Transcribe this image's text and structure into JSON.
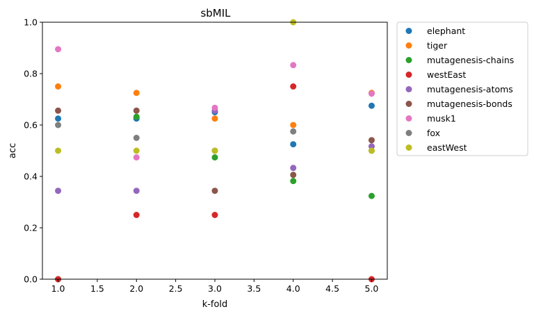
{
  "chart_data": {
    "type": "scatter",
    "title": "sbMIL",
    "xlabel": "k-fold",
    "ylabel": "acc",
    "xlim": [
      0.8,
      5.2
    ],
    "ylim": [
      0.0,
      1.0
    ],
    "xticks": [
      "1.0",
      "1.5",
      "2.0",
      "2.5",
      "3.0",
      "3.5",
      "4.0",
      "4.5",
      "5.0"
    ],
    "yticks": [
      "0.0",
      "0.2",
      "0.4",
      "0.6",
      "0.8",
      "1.0"
    ],
    "grid": false,
    "legend_position": "outside-right-top",
    "x": [
      1.0,
      2.0,
      3.0,
      4.0,
      5.0
    ],
    "series": [
      {
        "name": "elephant",
        "color": "#1f77b4",
        "values": [
          0.625,
          0.625,
          0.65,
          0.525,
          0.675
        ]
      },
      {
        "name": "tiger",
        "color": "#ff7f0e",
        "values": [
          0.75,
          0.725,
          0.625,
          0.6,
          0.725
        ]
      },
      {
        "name": "mutagenesis-chains",
        "color": "#2ca02c",
        "values": [
          0.0,
          0.632,
          0.474,
          0.382,
          0.324
        ]
      },
      {
        "name": "westEast",
        "color": "#d62728",
        "values": [
          0.0,
          0.25,
          0.25,
          0.75,
          0.0
        ]
      },
      {
        "name": "mutagenesis-atoms",
        "color": "#9467bd",
        "values": [
          0.344,
          0.344,
          0.656,
          0.433,
          0.517
        ]
      },
      {
        "name": "mutagenesis-bonds",
        "color": "#8c564b",
        "values": [
          0.656,
          0.656,
          0.344,
          0.406,
          0.541
        ]
      },
      {
        "name": "musk1",
        "color": "#e377c2",
        "values": [
          0.895,
          0.474,
          0.667,
          0.833,
          0.722
        ]
      },
      {
        "name": "fox",
        "color": "#7f7f7f",
        "values": [
          0.6,
          0.55,
          0.5,
          0.575,
          0.5
        ]
      },
      {
        "name": "eastWest",
        "color": "#bcbd22",
        "values": [
          0.5,
          0.5,
          0.5,
          1.0,
          0.5
        ]
      }
    ]
  }
}
